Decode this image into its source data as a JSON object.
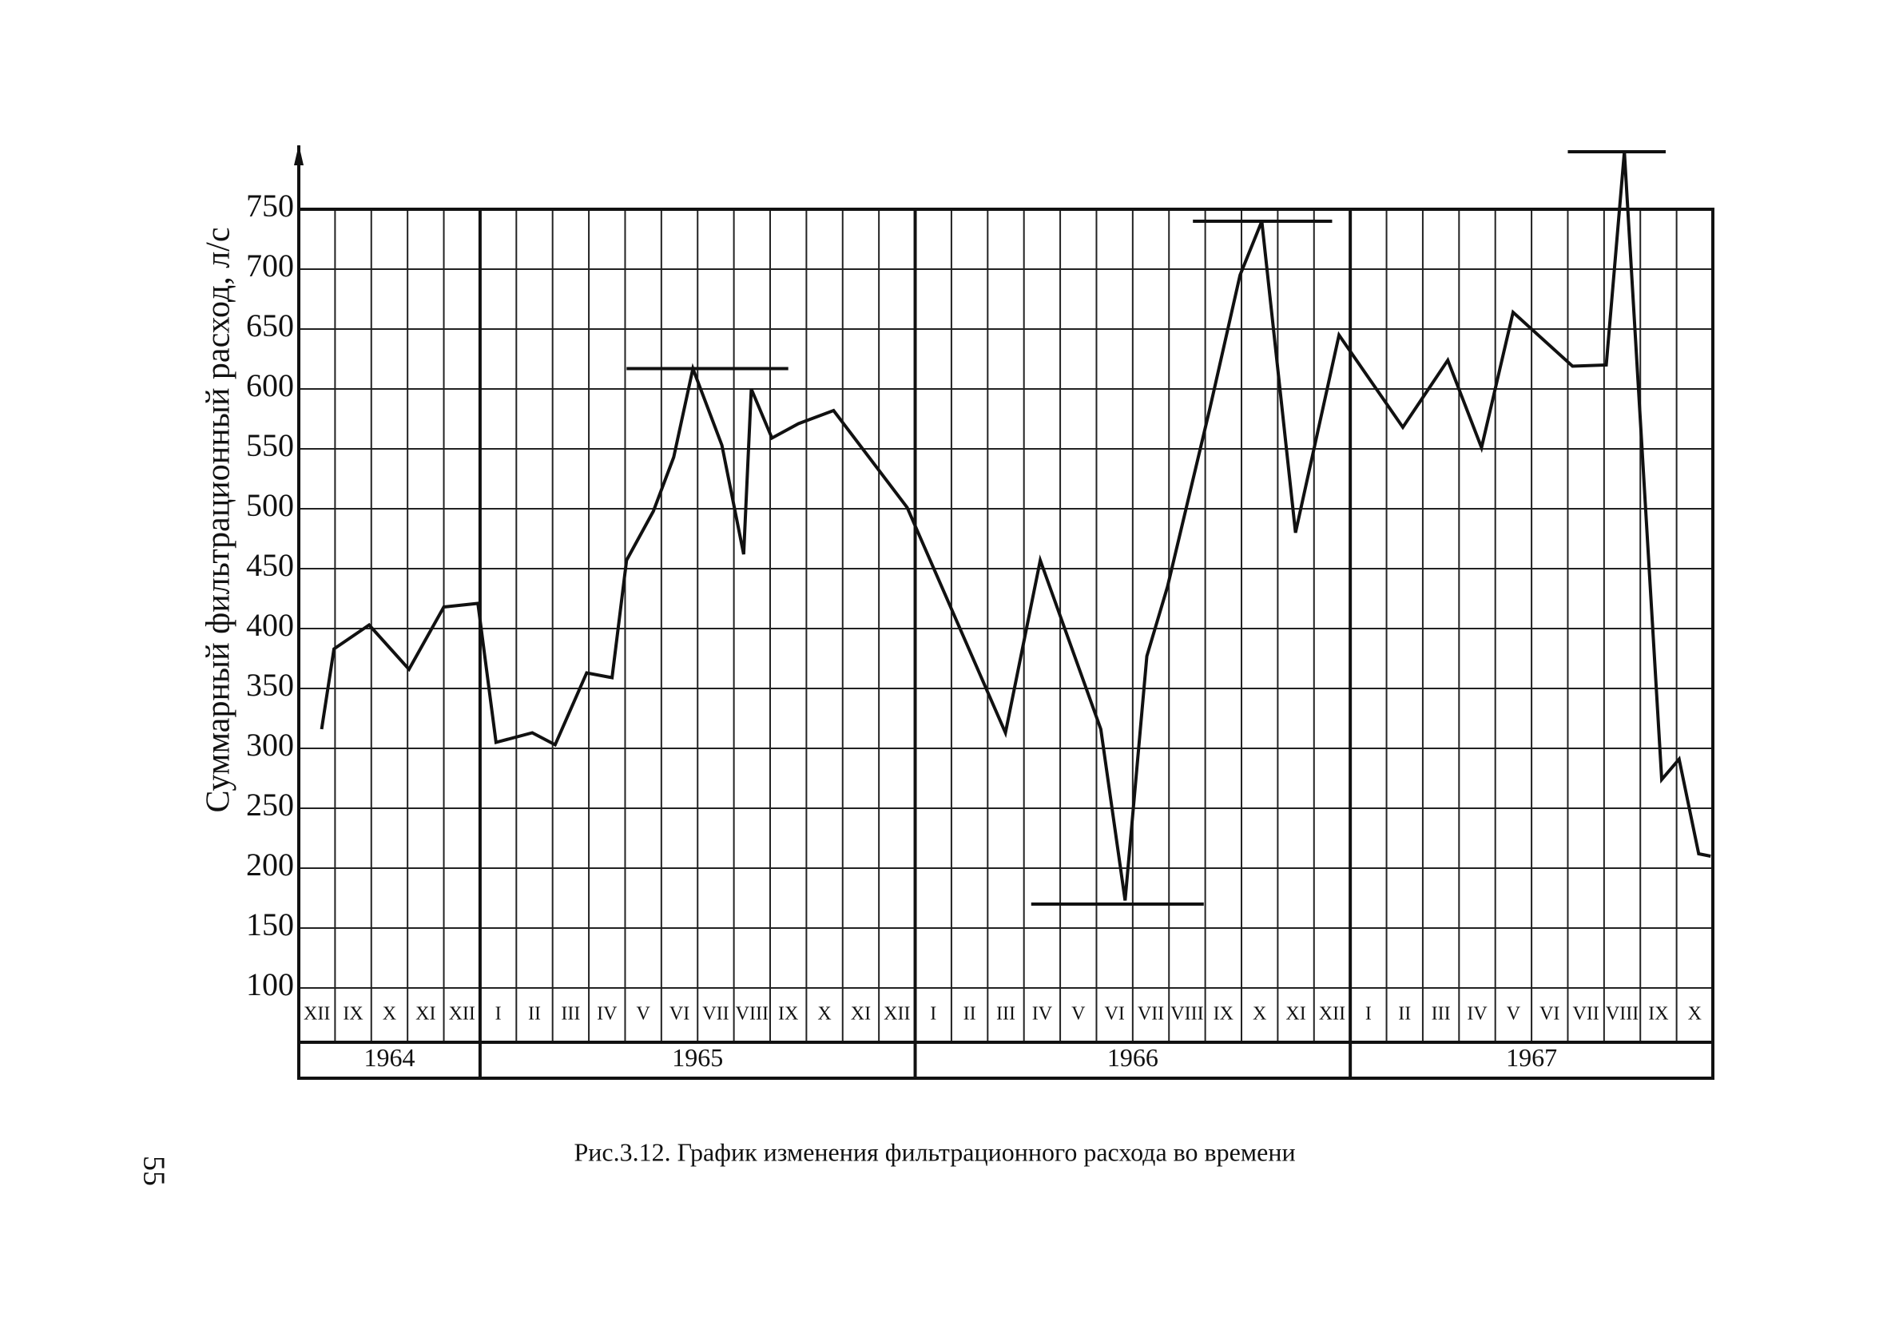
{
  "chart_data": {
    "type": "line",
    "ylabel": "Суммарный фильтрационный расход, л/с",
    "caption": "Рис.3.12. График изменения фильтрационного расхода во времени",
    "page_number": "55",
    "categories": [
      "XII",
      "IX",
      "X",
      "XI",
      "XII",
      "I",
      "II",
      "III",
      "IV",
      "V",
      "VI",
      "VII",
      "VIII",
      "IX",
      "X",
      "XI",
      "XII",
      "I",
      "II",
      "III",
      "IV",
      "V",
      "VI",
      "VII",
      "VIII",
      "IX",
      "X",
      "XI",
      "XII",
      "I",
      "II",
      "III",
      "IV",
      "V",
      "VI",
      "VII",
      "VIII",
      "IX",
      "X"
    ],
    "years": [
      "1964",
      "1965",
      "1966",
      "1967"
    ],
    "xlim": [
      0,
      39
    ],
    "ylim": [
      100,
      800
    ],
    "yticks": [
      100,
      150,
      200,
      250,
      300,
      350,
      400,
      450,
      500,
      550,
      600,
      650,
      700,
      750
    ],
    "grid": true,
    "series": [
      {
        "color": "#111111",
        "x": [
          0.63,
          0.97,
          1.94,
          3.04,
          4.0,
          4.94,
          5.44,
          6.44,
          7.07,
          7.94,
          8.64,
          9.04,
          9.78,
          10.34,
          10.87,
          11.67,
          12.27,
          12.48,
          13.05,
          13.78,
          14.75,
          16.78,
          19.49,
          20.45,
          22.12,
          22.79,
          23.39,
          23.96,
          25.13,
          25.96,
          26.56,
          27.49,
          28.69,
          30.45,
          31.69,
          32.62,
          33.49,
          35.13,
          36.06,
          36.56,
          37.59,
          38.07,
          38.61,
          38.94
        ],
        "values": [
          316,
          383,
          403,
          366,
          418,
          421,
          305,
          313,
          303,
          363,
          359,
          457,
          498,
          543,
          617,
          553,
          462,
          600,
          559,
          571,
          582,
          501,
          313,
          457,
          316,
          173,
          377,
          435,
          584,
          695,
          740,
          480,
          645,
          568,
          624,
          551,
          664,
          619,
          620,
          798,
          274,
          291,
          212,
          210
        ]
      }
    ],
    "reference_lines": [
      {
        "value": 617,
        "x": [
          9.04,
          13.5
        ]
      },
      {
        "value": 170,
        "x": [
          20.2,
          24.96
        ]
      },
      {
        "value": 740,
        "x": [
          24.66,
          28.5
        ]
      },
      {
        "value": 798,
        "x": [
          35.0,
          37.7
        ]
      }
    ]
  }
}
